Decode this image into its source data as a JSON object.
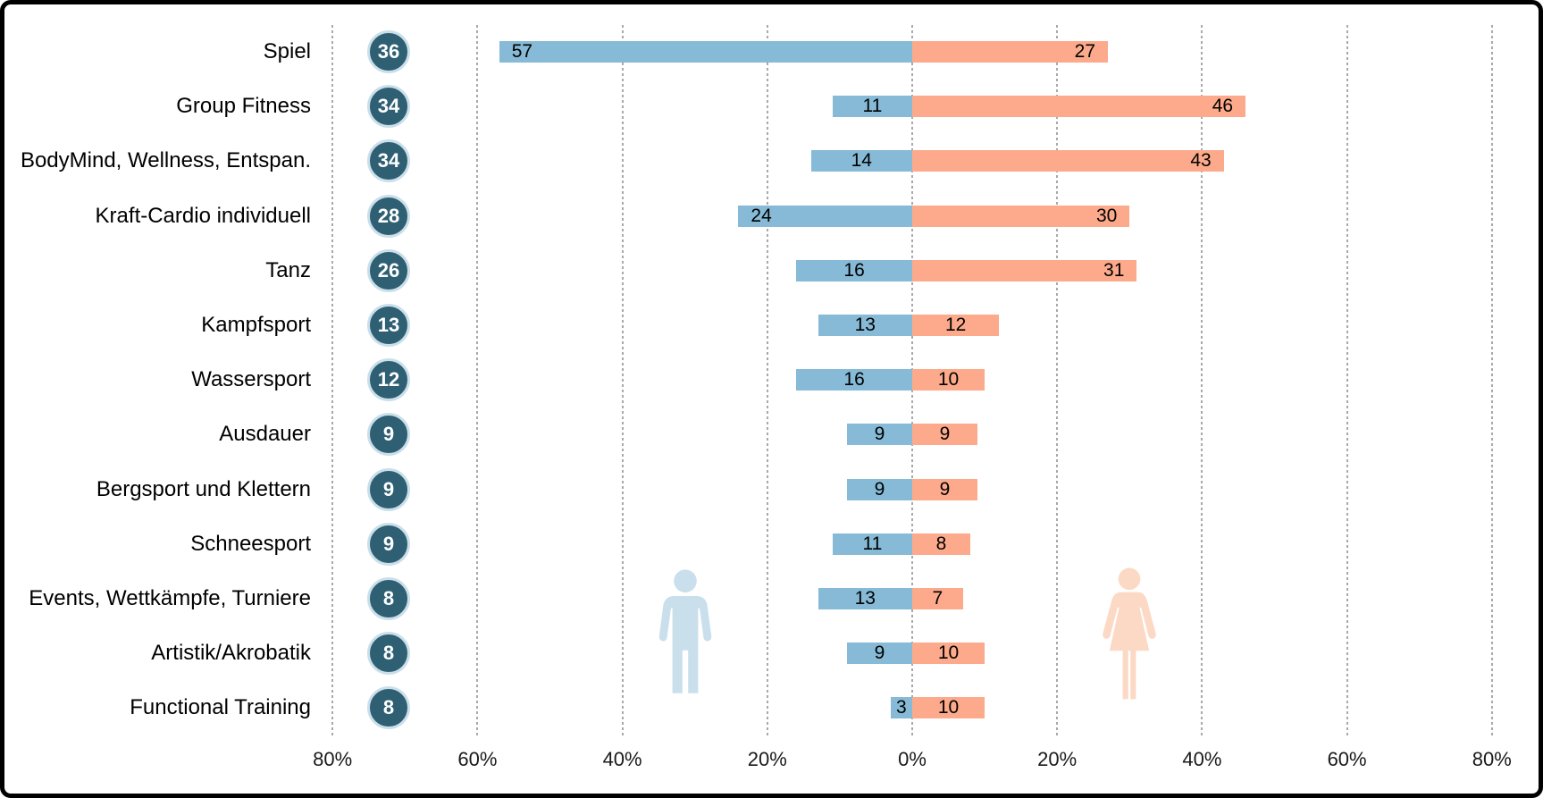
{
  "chart_data": {
    "type": "bar",
    "subtype": "diverging-horizontal-butterfly",
    "title": "",
    "categories": [
      "Spiel",
      "Group Fitness",
      "BodyMind, Wellness, Entspan.",
      "Kraft-Cardio individuell",
      "Tanz",
      "Kampfsport",
      "Wassersport",
      "Ausdauer",
      "Bergsport und Klettern",
      "Schneesport",
      "Events, Wettkämpfe, Turniere",
      "Artistik/Akrobatik",
      "Functional Training"
    ],
    "totals": [
      36,
      34,
      34,
      28,
      26,
      13,
      12,
      9,
      9,
      9,
      8,
      8,
      8
    ],
    "series": [
      {
        "name": "male",
        "side": "left",
        "color": "#86BAD6",
        "values": [
          57,
          11,
          14,
          24,
          16,
          13,
          16,
          9,
          9,
          11,
          13,
          9,
          3
        ]
      },
      {
        "name": "female",
        "side": "right",
        "color": "#FCAA8B",
        "values": [
          27,
          46,
          43,
          30,
          31,
          12,
          10,
          9,
          9,
          8,
          7,
          10,
          10
        ]
      }
    ],
    "x_axis": {
      "unit": "%",
      "xlim": [
        -80,
        80
      ],
      "ticks": [
        {
          "value": -80,
          "label": "80%"
        },
        {
          "value": -60,
          "label": "60%"
        },
        {
          "value": -40,
          "label": "40%"
        },
        {
          "value": -20,
          "label": "20%"
        },
        {
          "value": 0,
          "label": "0%"
        },
        {
          "value": 20,
          "label": "20%"
        },
        {
          "value": 40,
          "label": "40%"
        },
        {
          "value": 60,
          "label": "60%"
        },
        {
          "value": 80,
          "label": "80%"
        }
      ],
      "grid": "vertical-dotted"
    },
    "icons": [
      {
        "name": "man-pictogram",
        "color": "#CADFEC"
      },
      {
        "name": "woman-pictogram",
        "color": "#FCD9C5"
      }
    ]
  },
  "colors": {
    "male_bar": "#86BAD6",
    "female_bar": "#FCAA8B",
    "badge_fill": "#2E5F73",
    "badge_ring": "#CADFEA",
    "badge_text": "#FFFFFF",
    "bar_value_text": "#000000",
    "category_text": "#000000",
    "axis_text": "#1A1A1A",
    "gridline": "#A9A9A9",
    "frame_border": "#000000",
    "background": "#FFFFFF"
  }
}
